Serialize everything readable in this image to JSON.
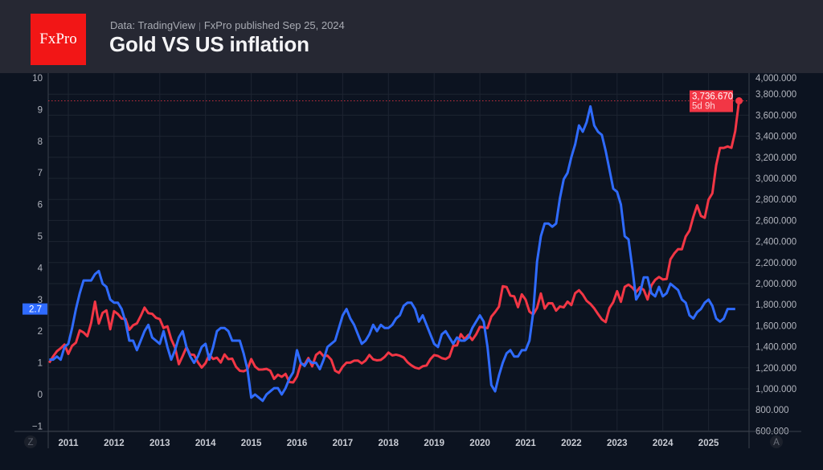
{
  "header": {
    "logo_text": "FxPro",
    "source": "Data: TradingView",
    "published": "FxPro published Sep 25, 2024",
    "title": "Gold VS US inflation"
  },
  "axis_buttons": {
    "left": "Z",
    "right": "A"
  },
  "colors": {
    "inflation": "#2f6bff",
    "gold": "#f23645",
    "background": "#0c1320",
    "header": "#262833"
  },
  "chart_data": {
    "type": "line",
    "title": "Gold VS US inflation",
    "grid": true,
    "x_ticks": [
      "2011",
      "2012",
      "2013",
      "2014",
      "2015",
      "2016",
      "2017",
      "2018",
      "2019",
      "2020",
      "2021",
      "2022",
      "2023",
      "2024",
      "2025"
    ],
    "left_axis": {
      "ylim": [
        -1,
        10
      ],
      "ticks": [
        "−1",
        "0",
        "1",
        "2",
        "3",
        "4",
        "5",
        "6",
        "7",
        "8",
        "9",
        "10"
      ]
    },
    "right_axis": {
      "ylim": [
        600,
        4000
      ],
      "ticks": [
        "600.000",
        "800.000",
        "1,000.000",
        "1,200.000",
        "1,400.000",
        "1,600.000",
        "1,800.000",
        "2,000.000",
        "2,200.000",
        "2,400.000",
        "2,600.000",
        "2,800.000",
        "3,000.000",
        "3,200.000",
        "3,400.000",
        "3,600.000",
        "3,800.000",
        "4,000.000"
      ]
    },
    "series": [
      {
        "key": "inflation",
        "axis": "left",
        "frequency": "monthly",
        "start": "2010-08",
        "last_label": "2.7",
        "values": [
          1.1,
          1.1,
          1.2,
          1.1,
          1.5,
          1.6,
          2.1,
          2.7,
          3.2,
          3.6,
          3.6,
          3.6,
          3.8,
          3.9,
          3.5,
          3.4,
          3.0,
          2.9,
          2.9,
          2.7,
          2.3,
          1.7,
          1.7,
          1.4,
          1.7,
          2.0,
          2.2,
          1.8,
          1.7,
          1.6,
          2.0,
          1.5,
          1.1,
          1.4,
          1.8,
          2.0,
          1.5,
          1.2,
          1.0,
          1.2,
          1.5,
          1.6,
          1.1,
          1.5,
          2.0,
          2.1,
          2.1,
          2.0,
          1.7,
          1.7,
          1.7,
          1.3,
          0.8,
          -0.1,
          0.0,
          -0.1,
          -0.2,
          0.0,
          0.1,
          0.2,
          0.2,
          0.0,
          0.2,
          0.5,
          0.7,
          1.4,
          1.0,
          0.9,
          1.1,
          1.0,
          1.0,
          0.8,
          1.1,
          1.5,
          1.6,
          1.7,
          2.1,
          2.5,
          2.7,
          2.4,
          2.2,
          1.9,
          1.6,
          1.7,
          1.9,
          2.2,
          2.0,
          2.2,
          2.1,
          2.1,
          2.2,
          2.4,
          2.5,
          2.8,
          2.9,
          2.9,
          2.7,
          2.3,
          2.5,
          2.2,
          1.9,
          1.6,
          1.5,
          1.9,
          2.0,
          1.8,
          1.6,
          1.8,
          1.7,
          1.7,
          1.8,
          2.1,
          2.3,
          2.5,
          2.3,
          1.5,
          0.3,
          0.1,
          0.6,
          1.0,
          1.3,
          1.4,
          1.2,
          1.2,
          1.4,
          1.4,
          1.7,
          2.6,
          4.2,
          5.0,
          5.4,
          5.4,
          5.3,
          5.4,
          6.2,
          6.8,
          7.0,
          7.5,
          7.9,
          8.5,
          8.3,
          8.6,
          9.1,
          8.5,
          8.3,
          8.2,
          7.7,
          7.1,
          6.5,
          6.4,
          6.0,
          5.0,
          4.9,
          4.0,
          3.0,
          3.2,
          3.7,
          3.7,
          3.2,
          3.1,
          3.4,
          3.1,
          3.2,
          3.5,
          3.4,
          3.3,
          3.0,
          2.9,
          2.5,
          2.4,
          2.6,
          2.7,
          2.9,
          3.0,
          2.8,
          2.4,
          2.3,
          2.4,
          2.7,
          2.7,
          2.7
        ]
      },
      {
        "key": "gold",
        "axis": "right",
        "frequency": "monthly",
        "start": "2010-08",
        "last_label": "3,736.670",
        "countdown": "5d 9h",
        "values": [
          1248,
          1307,
          1357,
          1386,
          1421,
          1332,
          1409,
          1439,
          1556,
          1536,
          1500,
          1628,
          1828,
          1620,
          1722,
          1746,
          1566,
          1738,
          1711,
          1668,
          1664,
          1561,
          1604,
          1622,
          1692,
          1772,
          1719,
          1713,
          1675,
          1663,
          1578,
          1595,
          1472,
          1392,
          1234,
          1312,
          1395,
          1326,
          1323,
          1253,
          1202,
          1244,
          1326,
          1284,
          1296,
          1250,
          1327,
          1282,
          1287,
          1210,
          1172,
          1167,
          1184,
          1283,
          1212,
          1183,
          1184,
          1190,
          1172,
          1095,
          1134,
          1114,
          1142,
          1065,
          1061,
          1118,
          1238,
          1232,
          1293,
          1214,
          1322,
          1351,
          1309,
          1316,
          1277,
          1173,
          1152,
          1211,
          1249,
          1249,
          1268,
          1269,
          1242,
          1269,
          1322,
          1280,
          1271,
          1275,
          1303,
          1345,
          1318,
          1325,
          1315,
          1298,
          1253,
          1224,
          1202,
          1192,
          1215,
          1222,
          1282,
          1321,
          1313,
          1292,
          1283,
          1305,
          1409,
          1413,
          1520,
          1472,
          1513,
          1464,
          1517,
          1589,
          1585,
          1577,
          1686,
          1730,
          1781,
          1975,
          1968,
          1886,
          1879,
          1776,
          1898,
          1847,
          1734,
          1707,
          1769,
          1906,
          1763,
          1814,
          1813,
          1743,
          1783,
          1774,
          1829,
          1796,
          1909,
          1937,
          1896,
          1837,
          1807,
          1765,
          1711,
          1660,
          1634,
          1768,
          1824,
          1928,
          1827,
          1969,
          1990,
          1962,
          1919,
          1965,
          1940,
          1849,
          1983,
          2036,
          2063,
          2039,
          2044,
          2230,
          2286,
          2327,
          2326,
          2447,
          2503,
          2634,
          2744,
          2643,
          2625,
          2798,
          2858,
          3124,
          3289,
          3289,
          3303,
          3290,
          3448,
          3736.67
        ]
      }
    ]
  }
}
